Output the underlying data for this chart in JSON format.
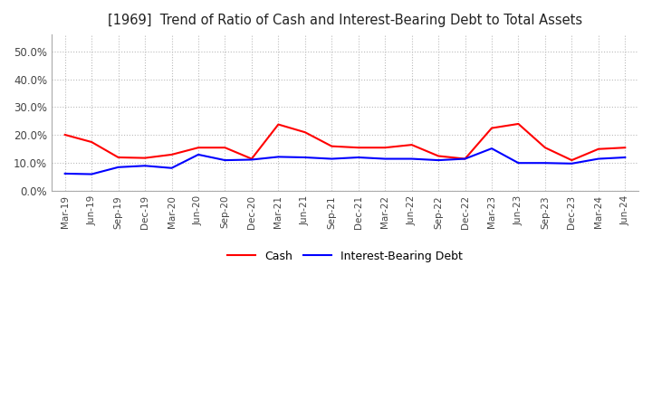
{
  "title": "[1969]  Trend of Ratio of Cash and Interest-Bearing Debt to Total Assets",
  "title_fontsize": 10.5,
  "ylim": [
    0.0,
    0.56
  ],
  "yticks": [
    0.0,
    0.1,
    0.2,
    0.3,
    0.4,
    0.5
  ],
  "ytick_labels": [
    "0.0%",
    "10.0%",
    "20.0%",
    "30.0%",
    "40.0%",
    "50.0%"
  ],
  "grid_color": "#bbbbbb",
  "x_labels": [
    "Mar-19",
    "Jun-19",
    "Sep-19",
    "Dec-19",
    "Mar-20",
    "Jun-20",
    "Sep-20",
    "Dec-20",
    "Mar-21",
    "Jun-21",
    "Sep-21",
    "Dec-21",
    "Mar-22",
    "Jun-22",
    "Sep-22",
    "Dec-22",
    "Mar-23",
    "Jun-23",
    "Sep-23",
    "Dec-23",
    "Mar-24",
    "Jun-24"
  ],
  "cash": [
    0.201,
    0.175,
    0.12,
    0.118,
    0.13,
    0.155,
    0.155,
    0.115,
    0.238,
    0.21,
    0.16,
    0.155,
    0.155,
    0.165,
    0.125,
    0.115,
    0.225,
    0.24,
    0.155,
    0.11,
    0.15,
    0.155
  ],
  "interest_bearing_debt": [
    0.062,
    0.06,
    0.085,
    0.09,
    0.082,
    0.13,
    0.11,
    0.112,
    0.122,
    0.12,
    0.115,
    0.12,
    0.115,
    0.115,
    0.11,
    0.115,
    0.152,
    0.1,
    0.1,
    0.098,
    0.115,
    0.12
  ],
  "cash_color": "#ff0000",
  "debt_color": "#0000ff",
  "line_width": 1.5,
  "legend_labels": [
    "Cash",
    "Interest-Bearing Debt"
  ]
}
